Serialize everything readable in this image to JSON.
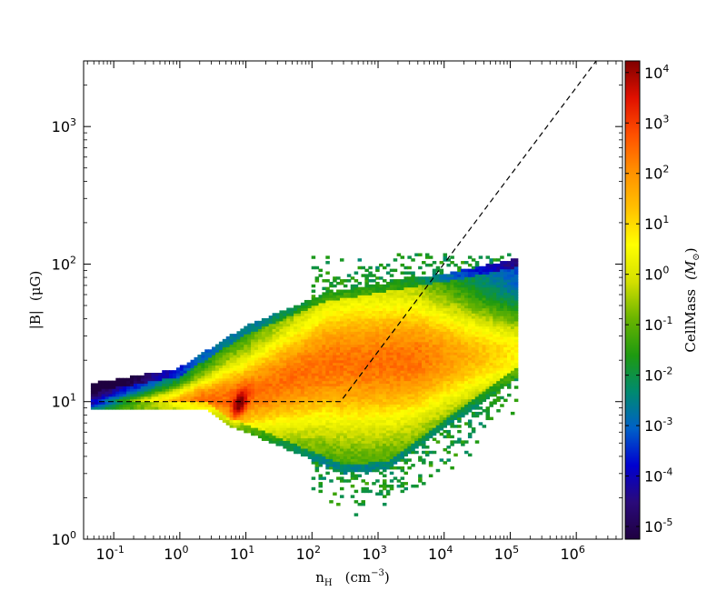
{
  "chart_data": {
    "type": "heatmap",
    "subtype": "2d-histogram",
    "title": "",
    "xlabel": {
      "main": "n",
      "sub": "H",
      "units": "(cm",
      "units_exp": "−3",
      "units_close": ")"
    },
    "ylabel": {
      "text": "|B|",
      "units": "(μG)"
    },
    "colorbar_label": {
      "text": "CellMass",
      "units": "(M",
      "units_sub": "⊙",
      "units_close": ")"
    },
    "x_scale": "log",
    "y_scale": "log",
    "xlim": [
      0.035,
      5000000
    ],
    "ylim": [
      1,
      3000
    ],
    "x_ticks": [
      {
        "base": "10",
        "exp": "-1",
        "value": 0.1
      },
      {
        "base": "10",
        "exp": "0",
        "value": 1
      },
      {
        "base": "10",
        "exp": "1",
        "value": 10
      },
      {
        "base": "10",
        "exp": "2",
        "value": 100
      },
      {
        "base": "10",
        "exp": "3",
        "value": 1000
      },
      {
        "base": "10",
        "exp": "4",
        "value": 10000
      },
      {
        "base": "10",
        "exp": "5",
        "value": 100000
      },
      {
        "base": "10",
        "exp": "6",
        "value": 1000000
      }
    ],
    "y_ticks": [
      {
        "base": "10",
        "exp": "0",
        "value": 1
      },
      {
        "base": "10",
        "exp": "1",
        "value": 10
      },
      {
        "base": "10",
        "exp": "2",
        "value": 100
      },
      {
        "base": "10",
        "exp": "3",
        "value": 1000
      }
    ],
    "colorbar": {
      "scale": "log",
      "range": [
        5.6e-06,
        17000
      ],
      "colormap": [
        "#1f0040",
        "#2a0a7a",
        "#0000d0",
        "#0060c8",
        "#008a70",
        "#1e9a10",
        "#6ab400",
        "#d4e000",
        "#ffff00",
        "#ffc000",
        "#ff9000",
        "#ff5000",
        "#e01000",
        "#800000"
      ],
      "ticks": [
        {
          "base": "10",
          "exp": "-5",
          "value": 1e-05
        },
        {
          "base": "10",
          "exp": "-4",
          "value": 0.0001
        },
        {
          "base": "10",
          "exp": "-3",
          "value": 0.001
        },
        {
          "base": "10",
          "exp": "-2",
          "value": 0.01
        },
        {
          "base": "10",
          "exp": "-1",
          "value": 0.1
        },
        {
          "base": "10",
          "exp": "0",
          "value": 1
        },
        {
          "base": "10",
          "exp": "1",
          "value": 10
        },
        {
          "base": "10",
          "exp": "2",
          "value": 100
        },
        {
          "base": "10",
          "exp": "3",
          "value": 1000
        },
        {
          "base": "10",
          "exp": "4",
          "value": 10000
        }
      ]
    },
    "reference_line": {
      "style": "dashed",
      "color": "#000000",
      "points": [
        {
          "x": 0.06,
          "y": 10
        },
        {
          "x": 270,
          "y": 10
        },
        {
          "x": 2000000,
          "y": 3000
        }
      ]
    },
    "distribution": {
      "description_values": "approximate CellMass per bin, log10 peak values",
      "peak": {
        "x": 8,
        "y": 10,
        "cellmass": 10000
      },
      "ridge": [
        {
          "x": 5,
          "y": 7,
          "cellmass": 1000
        },
        {
          "x": 30,
          "y": 16,
          "cellmass": 500
        },
        {
          "x": 200,
          "y": 18,
          "cellmass": 300
        },
        {
          "x": 2000,
          "y": 20,
          "cellmass": 100
        },
        {
          "x": 20000,
          "y": 30,
          "cellmass": 10
        }
      ]
    }
  }
}
